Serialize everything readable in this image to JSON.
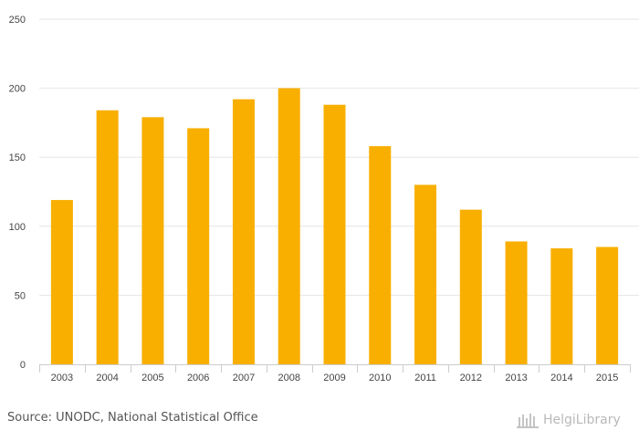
{
  "chart_data": {
    "type": "bar",
    "categories": [
      "2003",
      "2004",
      "2005",
      "2006",
      "2007",
      "2008",
      "2009",
      "2010",
      "2011",
      "2012",
      "2013",
      "2014",
      "2015"
    ],
    "values": [
      119,
      184,
      179,
      171,
      192,
      200,
      188,
      158,
      130,
      112,
      89,
      84,
      85
    ],
    "title": "",
    "xlabel": "",
    "ylabel": "",
    "ylim": [
      0,
      250
    ],
    "yticks": [
      0,
      50,
      100,
      150,
      200,
      250
    ],
    "grid": true,
    "legend": "none",
    "bar_color": "#f8af00",
    "grid_color": "#e6e6e6",
    "axis_color": "#cccccc"
  },
  "footer": {
    "source": "Source: UNODC, National Statistical Office",
    "brand": "HelgiLibrary"
  }
}
